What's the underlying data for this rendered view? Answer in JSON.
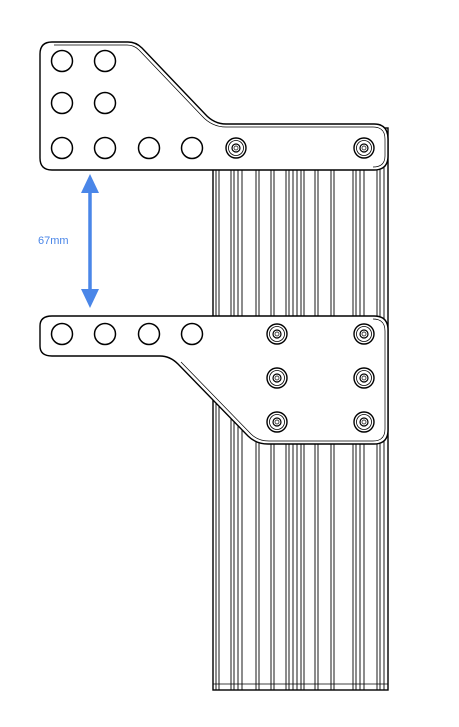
{
  "dimension": {
    "label": "67mm",
    "color": "#4a86e8"
  },
  "drawing": {
    "line_color": "#000000",
    "background": "#ffffff"
  },
  "upper_plate": {
    "large_hole_rows": [
      2,
      2,
      4
    ],
    "bolts": 2
  },
  "lower_plate": {
    "large_holes": 4,
    "bolt_rows": 3,
    "bolts_per_row": 2
  }
}
